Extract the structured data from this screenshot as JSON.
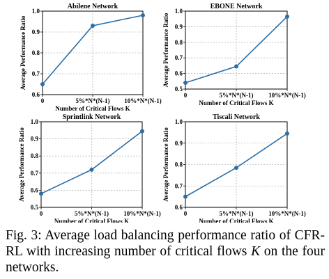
{
  "chart_data": [
    {
      "type": "line",
      "title": "Abilene Network",
      "xlabel": "Number of Critical Flows K",
      "ylabel": "Average Performance Ratio",
      "categories": [
        "0",
        "5%*N*(N-1)",
        "10%*N*(N-1)"
      ],
      "values": [
        0.65,
        0.93,
        0.98
      ],
      "ylim": [
        0.6,
        1.0
      ],
      "yticks": [
        "0.6",
        "0.7",
        "0.8",
        "0.9",
        "1.0"
      ],
      "grid": true,
      "color": "#2b6ea6"
    },
    {
      "type": "line",
      "title": "EBONE Network",
      "xlabel": "Number of Critical Flows K",
      "ylabel": "Average Performance Ratio",
      "categories": [
        "0",
        "5%*N*(N-1)",
        "10%*N*(N-1)"
      ],
      "values": [
        0.54,
        0.645,
        0.965
      ],
      "ylim": [
        0.5,
        1.0
      ],
      "yticks": [
        "0.5",
        "0.6",
        "0.7",
        "0.8",
        "0.9",
        "1.0"
      ],
      "grid": true,
      "color": "#2b6ea6"
    },
    {
      "type": "line",
      "title": "Sprintlink Network",
      "xlabel": "Number of Critical Flows K",
      "ylabel": "Average Performance Ratio",
      "categories": [
        "0",
        "5%*N*(N-1)",
        "10%*N*(N-1)"
      ],
      "values": [
        0.58,
        0.72,
        0.945
      ],
      "ylim": [
        0.5,
        1.0
      ],
      "yticks": [
        "0.5",
        "0.6",
        "0.7",
        "0.8",
        "0.9",
        "1.0"
      ],
      "grid": true,
      "color": "#2b6ea6"
    },
    {
      "type": "line",
      "title": "Tiscali Network",
      "xlabel": "Number of Critical Flows K",
      "ylabel": "Average Performance Ratio",
      "categories": [
        "0",
        "5%*N*(N-1)",
        "10%*N*(N-1)"
      ],
      "values": [
        0.65,
        0.785,
        0.945
      ],
      "ylim": [
        0.6,
        1.0
      ],
      "yticks": [
        "0.6",
        "0.7",
        "0.8",
        "0.9",
        "1.0"
      ],
      "grid": true,
      "color": "#2b6ea6"
    }
  ],
  "caption": {
    "part1": "Fig. 3: Average load balancing performance ratio of CFR-RL with increasing number of critical flows ",
    "italic": "K",
    "part2": " on the four networks."
  }
}
